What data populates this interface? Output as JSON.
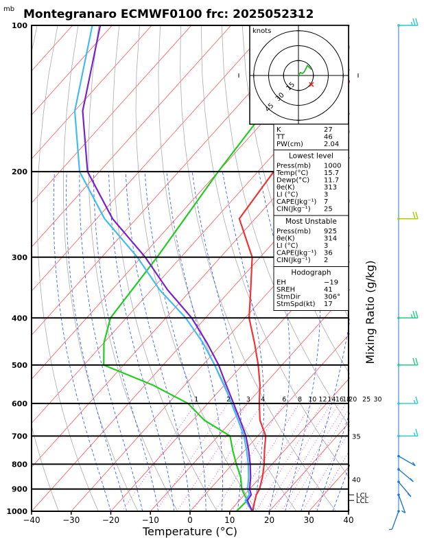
{
  "chart_data": {
    "type": "skew-t",
    "title": "Montegranaro ECMWF0100 frc: 2025052312",
    "xlabel": "Temperature (°C)",
    "ylabel_right": "Mixing Ratio (g/kg)",
    "yunit": "mb",
    "xlim": [
      -40,
      40
    ],
    "ylim": [
      1000,
      100
    ],
    "x_ticks": [
      "−40",
      "−30",
      "−20",
      "−10",
      "0",
      "10",
      "20",
      "30",
      "40"
    ],
    "x_tick_values": [
      -40,
      -30,
      -20,
      -10,
      0,
      10,
      20,
      30,
      40
    ],
    "p_ticks": [
      "100",
      "200",
      "300",
      "400",
      "500",
      "600",
      "700",
      "800",
      "900",
      "1000"
    ],
    "p_tick_values": [
      100,
      200,
      300,
      400,
      500,
      600,
      700,
      800,
      900,
      1000
    ],
    "mixing_ratio_labels": [
      "1",
      "2",
      "3",
      "4",
      "6",
      "8",
      "10",
      "12",
      "14",
      "16",
      "18",
      "20",
      "25",
      "30"
    ],
    "mixing_ratio_values": [
      1,
      2,
      3,
      4,
      6,
      8,
      10,
      12,
      14,
      16,
      18,
      20,
      25,
      30
    ],
    "theta_e_labels": [
      "35",
      "40"
    ],
    "lcl_labels": [
      "LCL",
      "LCL"
    ],
    "lcl_pressures": [
      925,
      950
    ],
    "series": [
      {
        "name": "",
        "color": "#ee3333",
        "points": [
          [
            15.7,
            1000
          ],
          [
            13,
            925
          ],
          [
            12.5,
            900
          ],
          [
            10.5,
            850
          ],
          [
            8,
            800
          ],
          [
            5,
            750
          ],
          [
            2,
            700
          ],
          [
            -3,
            650
          ],
          [
            -7,
            600
          ],
          [
            -11,
            550
          ],
          [
            -16,
            500
          ],
          [
            -22,
            450
          ],
          [
            -29,
            400
          ],
          [
            -35,
            350
          ],
          [
            -42,
            300
          ],
          [
            -54,
            250
          ],
          [
            -56,
            200
          ],
          [
            -57,
            150
          ],
          [
            -58,
            100
          ]
        ]
      },
      {
        "name": "",
        "color": "#22cc22",
        "points": [
          [
            11.7,
            1000
          ],
          [
            12,
            950
          ],
          [
            10,
            925
          ],
          [
            8,
            900
          ],
          [
            5,
            850
          ],
          [
            1,
            800
          ],
          [
            -3,
            750
          ],
          [
            -7,
            700
          ],
          [
            -17,
            650
          ],
          [
            -25,
            600
          ],
          [
            -38,
            550
          ],
          [
            -55,
            500
          ],
          [
            -60,
            450
          ],
          [
            -64,
            400
          ],
          [
            -66,
            300
          ],
          [
            -70,
            200
          ],
          [
            -75,
            100
          ]
        ]
      },
      {
        "name": "",
        "color": "#44bbee",
        "points": [
          [
            15.7,
            1000
          ],
          [
            11.5,
            950
          ],
          [
            11.2,
            925
          ],
          [
            9.5,
            900
          ],
          [
            7,
            850
          ],
          [
            4,
            800
          ],
          [
            0.5,
            750
          ],
          [
            -3.5,
            700
          ],
          [
            -8.5,
            650
          ],
          [
            -14,
            600
          ],
          [
            -20,
            550
          ],
          [
            -27,
            500
          ],
          [
            -35,
            450
          ],
          [
            -45,
            400
          ],
          [
            -58,
            350
          ],
          [
            -71,
            300
          ],
          [
            -88,
            250
          ],
          [
            -105,
            200
          ],
          [
            -120,
            150
          ],
          [
            -135,
            100
          ]
        ]
      },
      {
        "name": "",
        "color": "#7722cc",
        "points": [
          [
            15.7,
            1000
          ],
          [
            12,
            950
          ],
          [
            11.7,
            925
          ],
          [
            10,
            900
          ],
          [
            7.5,
            850
          ],
          [
            4.5,
            800
          ],
          [
            1,
            750
          ],
          [
            -3,
            700
          ],
          [
            -8,
            650
          ],
          [
            -13.5,
            600
          ],
          [
            -19.5,
            550
          ],
          [
            -26,
            500
          ],
          [
            -34,
            450
          ],
          [
            -43.5,
            400
          ],
          [
            -56,
            350
          ],
          [
            -69,
            300
          ],
          [
            -86,
            250
          ],
          [
            -103,
            200
          ],
          [
            -118,
            150
          ],
          [
            -133,
            100
          ]
        ]
      }
    ],
    "wind_barbs": [
      {
        "p": 100,
        "dir": 270,
        "kt": 25,
        "color": "#22cccc"
      },
      {
        "p": 250,
        "dir": 270,
        "kt": 20,
        "color": "#aacc00"
      },
      {
        "p": 400,
        "dir": 270,
        "kt": 25,
        "color": "#22cc88"
      },
      {
        "p": 500,
        "dir": 270,
        "kt": 20,
        "color": "#22cc88"
      },
      {
        "p": 600,
        "dir": 270,
        "kt": 15,
        "color": "#22cccc"
      },
      {
        "p": 700,
        "dir": 270,
        "kt": 15,
        "color": "#22cccc"
      },
      {
        "p": 770,
        "dir": 240,
        "kt": 5,
        "color": "#2277cc"
      },
      {
        "p": 820,
        "dir": 230,
        "kt": 5,
        "color": "#2277cc"
      },
      {
        "p": 870,
        "dir": 220,
        "kt": 5,
        "color": "#2277cc"
      },
      {
        "p": 925,
        "dir": 200,
        "kt": 5,
        "color": "#2277cc"
      },
      {
        "p": 1000,
        "dir": 160,
        "kt": 5,
        "color": "#2277cc"
      }
    ],
    "hodograph": {
      "unit_label": "knots",
      "ring_labels": [
        "15",
        "30",
        "45"
      ],
      "ring_values": [
        15,
        30,
        45
      ],
      "points": [
        [
          0,
          0
        ],
        [
          2,
          3
        ],
        [
          4,
          2
        ],
        [
          6,
          4
        ],
        [
          9,
          10
        ],
        [
          13,
          6
        ]
      ],
      "storm_motion_kt": 17
    }
  },
  "indices": {
    "top": [
      {
        "label": "K",
        "value": "27"
      },
      {
        "label": "TT",
        "value": "46"
      },
      {
        "label": "PW(cm)",
        "value": "2.04"
      }
    ],
    "lowest_level": {
      "title": "Lowest level",
      "rows": [
        {
          "label": "Press(mb)",
          "value": "1000"
        },
        {
          "label": "Temp(°C)",
          "value": "15.7"
        },
        {
          "label": "Dewp(°C)",
          "value": "11.7"
        },
        {
          "label": "θe(K)",
          "value": "313"
        },
        {
          "label": "LI (°C)",
          "value": "3"
        },
        {
          "label": "CAPE(Jkg⁻¹)",
          "value": "7"
        },
        {
          "label": "CIN(Jkg⁻¹)",
          "value": "25"
        }
      ]
    },
    "most_unstable": {
      "title": "Most Unstable",
      "rows": [
        {
          "label": "Press(mb)",
          "value": "925"
        },
        {
          "label": "θe(K)",
          "value": "314"
        },
        {
          "label": "LI (°C)",
          "value": "3"
        },
        {
          "label": "CAPE(Jkg⁻¹)",
          "value": "36"
        },
        {
          "label": "CIN(Jkg⁻¹)",
          "value": "2"
        }
      ]
    },
    "hodograph": {
      "title": "Hodograph",
      "rows": [
        {
          "label": "EH",
          "value": "−19"
        },
        {
          "label": "SREH",
          "value": "41"
        },
        {
          "label": "StmDir",
          "value": "306°"
        },
        {
          "label": "StmSpd(kt)",
          "value": "17"
        }
      ]
    }
  },
  "colors": {
    "isotherm": "#ff5555",
    "dry_adiabat": "#aaaaaa",
    "moist_adiabat": "#2255ee",
    "mixing_ratio": "#dd44dd",
    "label_purple": "#aa22cc"
  }
}
